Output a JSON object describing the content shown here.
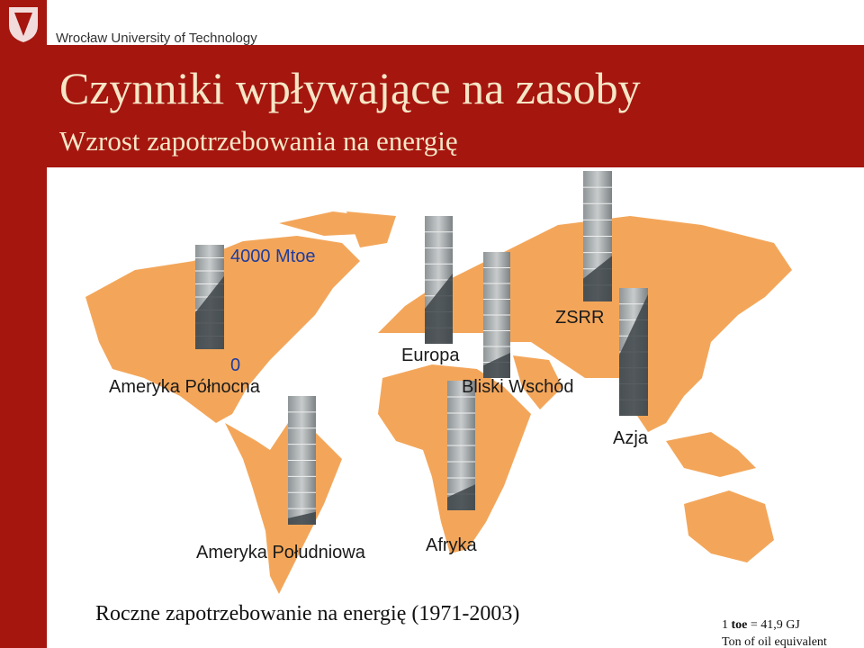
{
  "header": {
    "institution": "Wrocław University of Technology"
  },
  "slide": {
    "title": "Czynniki wpływające na zasoby",
    "subtitle": "Wzrost zapotrzebowania na energię"
  },
  "scale": {
    "top": "4000 Mtoe",
    "bottom": "0"
  },
  "regions": [
    "Ameryka Północna",
    "Europa",
    "Bliski Wschód",
    "ZSRR",
    "Azja",
    "Ameryka Południowa",
    "Afryka"
  ],
  "caption": "Roczne zapotrzebowanie na energię (1971-2003)",
  "note": {
    "prefix": "1",
    "unit": "toe",
    "rest": "= 41,9 GJ",
    "definition": "Ton of oil equivalent"
  }
}
